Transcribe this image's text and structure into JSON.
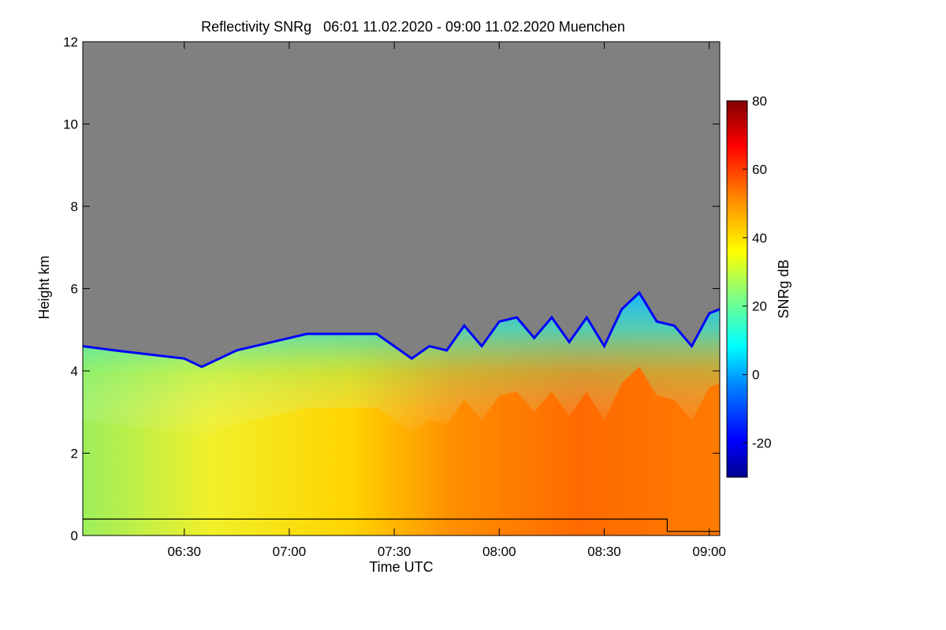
{
  "chart_data": {
    "type": "heatmap",
    "title": "Reflectivity SNRg   06:01 11.02.2020 - 09:00 11.02.2020 Muenchen",
    "xlabel": "Time UTC",
    "ylabel": "Height km",
    "colorbar_label": "SNRg dB",
    "xlim_minutes_utc": [
      361,
      543
    ],
    "ylim": [
      0,
      12
    ],
    "x_ticks": [
      {
        "label": "06:30",
        "minutes_utc": 390
      },
      {
        "label": "07:00",
        "minutes_utc": 420
      },
      {
        "label": "07:30",
        "minutes_utc": 450
      },
      {
        "label": "08:00",
        "minutes_utc": 480
      },
      {
        "label": "08:30",
        "minutes_utc": 510
      },
      {
        "label": "09:00",
        "minutes_utc": 540
      }
    ],
    "y_ticks": [
      {
        "label": "0",
        "value": 0
      },
      {
        "label": "2",
        "value": 2
      },
      {
        "label": "4",
        "value": 4
      },
      {
        "label": "6",
        "value": 6
      },
      {
        "label": "8",
        "value": 8
      },
      {
        "label": "10",
        "value": 10
      },
      {
        "label": "12",
        "value": 12
      }
    ],
    "colorbar": {
      "range": [
        -30,
        80
      ],
      "ticks": [
        {
          "label": "-20",
          "value": -20
        },
        {
          "label": "0",
          "value": 0
        },
        {
          "label": "20",
          "value": 20
        },
        {
          "label": "40",
          "value": 40
        },
        {
          "label": "60",
          "value": 60
        },
        {
          "label": "80",
          "value": 80
        }
      ],
      "colormap": [
        "#00008f",
        "#0000ff",
        "#0080ff",
        "#00ffff",
        "#80ff80",
        "#ffff00",
        "#ff8000",
        "#ff0000",
        "#800000"
      ]
    },
    "no_data_color": "#808080",
    "echo_top_profile_km": [
      {
        "minutes_utc": 361,
        "top": 4.6
      },
      {
        "minutes_utc": 370,
        "top": 4.5
      },
      {
        "minutes_utc": 380,
        "top": 4.4
      },
      {
        "minutes_utc": 390,
        "top": 4.3
      },
      {
        "minutes_utc": 395,
        "top": 4.1
      },
      {
        "minutes_utc": 405,
        "top": 4.5
      },
      {
        "minutes_utc": 415,
        "top": 4.7
      },
      {
        "minutes_utc": 425,
        "top": 4.9
      },
      {
        "minutes_utc": 435,
        "top": 4.9
      },
      {
        "minutes_utc": 445,
        "top": 4.9
      },
      {
        "minutes_utc": 450,
        "top": 4.6
      },
      {
        "minutes_utc": 455,
        "top": 4.3
      },
      {
        "minutes_utc": 460,
        "top": 4.6
      },
      {
        "minutes_utc": 465,
        "top": 4.5
      },
      {
        "minutes_utc": 470,
        "top": 5.1
      },
      {
        "minutes_utc": 475,
        "top": 4.6
      },
      {
        "minutes_utc": 480,
        "top": 5.2
      },
      {
        "minutes_utc": 485,
        "top": 5.3
      },
      {
        "minutes_utc": 490,
        "top": 4.8
      },
      {
        "minutes_utc": 495,
        "top": 5.3
      },
      {
        "minutes_utc": 500,
        "top": 4.7
      },
      {
        "minutes_utc": 505,
        "top": 5.3
      },
      {
        "minutes_utc": 510,
        "top": 4.6
      },
      {
        "minutes_utc": 515,
        "top": 5.5
      },
      {
        "minutes_utc": 520,
        "top": 5.9
      },
      {
        "minutes_utc": 525,
        "top": 5.2
      },
      {
        "minutes_utc": 530,
        "top": 5.1
      },
      {
        "minutes_utc": 535,
        "top": 4.6
      },
      {
        "minutes_utc": 540,
        "top": 5.4
      },
      {
        "minutes_utc": 543,
        "top": 5.5
      }
    ],
    "black_line_km": [
      {
        "minutes_utc": 361,
        "height": 0.4
      },
      {
        "minutes_utc": 528,
        "height": 0.4
      },
      {
        "minutes_utc": 528,
        "height": 0.1
      },
      {
        "minutes_utc": 543,
        "height": 0.1
      }
    ]
  }
}
